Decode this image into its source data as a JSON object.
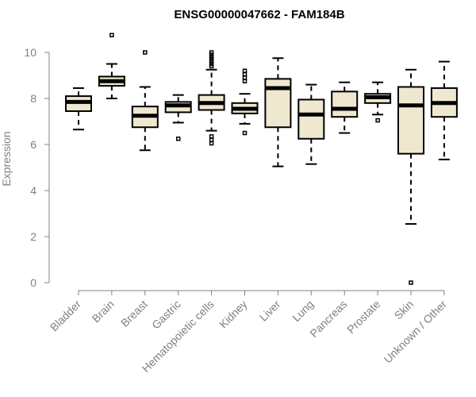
{
  "chart_data": {
    "type": "box",
    "title": "ENSG00000047662 - FAM184B",
    "xlabel": "",
    "ylabel": "Expression",
    "ylim": [
      0,
      10
    ],
    "yticks": [
      0,
      2,
      4,
      6,
      8,
      10
    ],
    "grid": false,
    "colors": {
      "box_fill": "#efe8d0",
      "box_stroke": "#000000",
      "axis": "#808080"
    },
    "categories": [
      "Bladder",
      "Brain",
      "Breast",
      "Gastric",
      "Hematopoietic cells",
      "Kidney",
      "Liver",
      "Lung",
      "Pancreas",
      "Prostate",
      "Skin",
      "Unknown / Other"
    ],
    "boxes": [
      {
        "name": "Bladder",
        "whisker_low": 6.65,
        "q1": 7.45,
        "median": 7.85,
        "q3": 8.1,
        "whisker_high": 8.45,
        "outliers": []
      },
      {
        "name": "Brain",
        "whisker_low": 8.0,
        "q1": 8.55,
        "median": 8.75,
        "q3": 8.95,
        "whisker_high": 9.5,
        "outliers": [
          10.75
        ]
      },
      {
        "name": "Breast",
        "whisker_low": 5.75,
        "q1": 6.75,
        "median": 7.25,
        "q3": 7.65,
        "whisker_high": 8.5,
        "outliers": [
          10.0
        ]
      },
      {
        "name": "Gastric",
        "whisker_low": 6.95,
        "q1": 7.4,
        "median": 7.7,
        "q3": 7.85,
        "whisker_high": 8.15,
        "outliers": [
          6.25
        ]
      },
      {
        "name": "Hematopoietic cells",
        "whisker_low": 6.6,
        "q1": 7.5,
        "median": 7.8,
        "q3": 8.15,
        "whisker_high": 9.25,
        "outliers": [
          6.05,
          6.2,
          6.35,
          9.4,
          9.5,
          9.6,
          9.7,
          9.8,
          9.9,
          10.0
        ]
      },
      {
        "name": "Kidney",
        "whisker_low": 6.9,
        "q1": 7.35,
        "median": 7.55,
        "q3": 7.8,
        "whisker_high": 8.2,
        "outliers": [
          6.5,
          8.75,
          8.9,
          9.05,
          9.2
        ]
      },
      {
        "name": "Liver",
        "whisker_low": 5.05,
        "q1": 6.75,
        "median": 8.45,
        "q3": 8.85,
        "whisker_high": 9.75,
        "outliers": []
      },
      {
        "name": "Lung",
        "whisker_low": 5.15,
        "q1": 6.25,
        "median": 7.3,
        "q3": 7.95,
        "whisker_high": 8.6,
        "outliers": []
      },
      {
        "name": "Pancreas",
        "whisker_low": 6.5,
        "q1": 7.2,
        "median": 7.55,
        "q3": 8.3,
        "whisker_high": 8.7,
        "outliers": []
      },
      {
        "name": "Prostate",
        "whisker_low": 7.3,
        "q1": 7.8,
        "median": 8.05,
        "q3": 8.2,
        "whisker_high": 8.7,
        "outliers": [
          7.05
        ]
      },
      {
        "name": "Skin",
        "whisker_low": 2.55,
        "q1": 5.6,
        "median": 7.7,
        "q3": 8.5,
        "whisker_high": 9.25,
        "outliers": [
          0.0
        ]
      },
      {
        "name": "Unknown / Other",
        "whisker_low": 5.35,
        "q1": 7.2,
        "median": 7.8,
        "q3": 8.45,
        "whisker_high": 9.6,
        "outliers": []
      }
    ]
  }
}
